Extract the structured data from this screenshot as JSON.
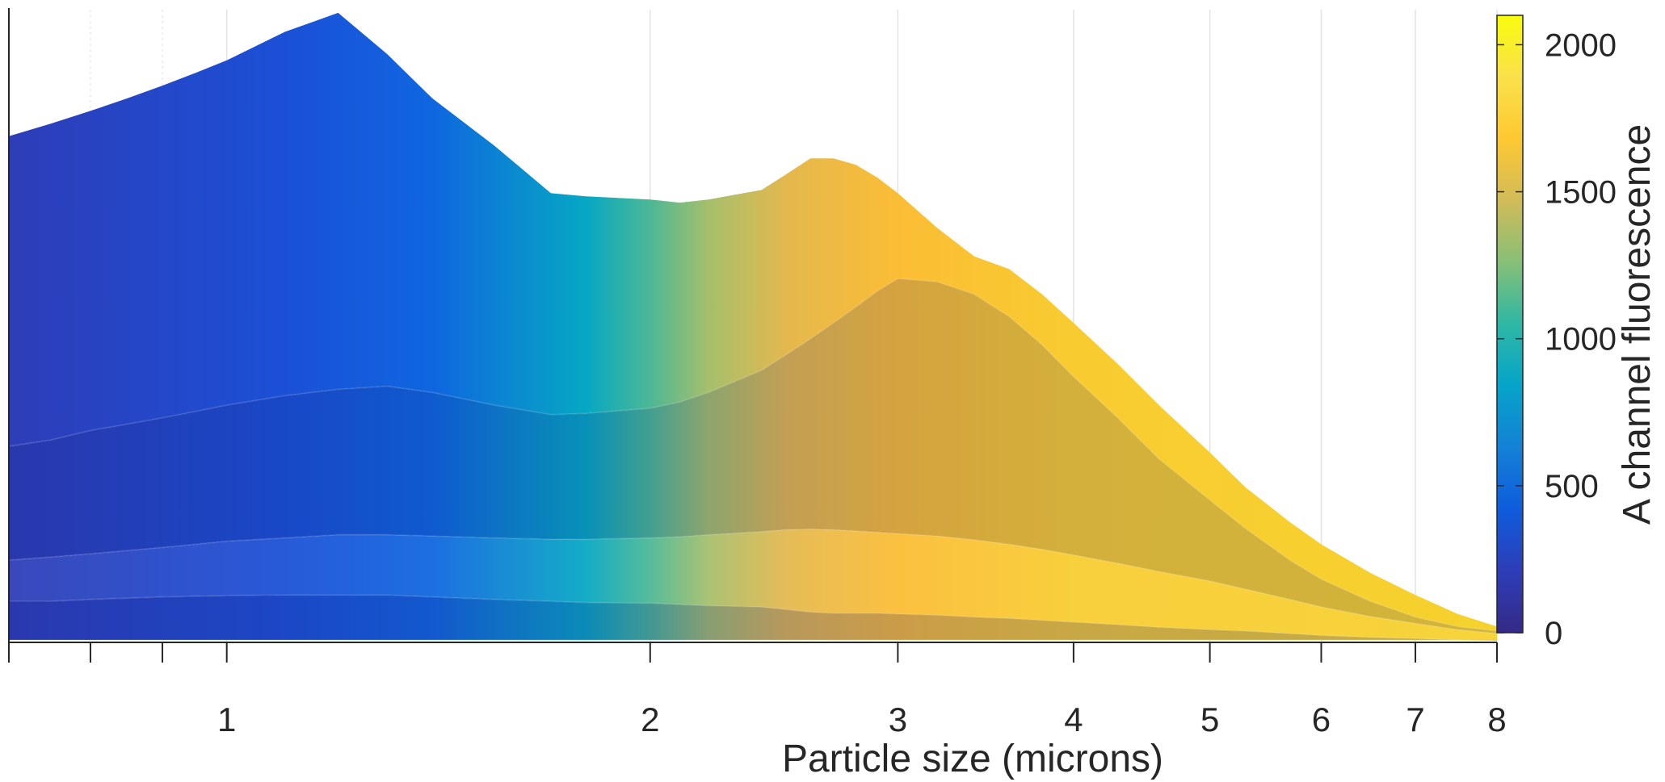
{
  "chart_data": {
    "type": "area",
    "xlabel": "Particle size (microns)",
    "x_scale": "log",
    "xlim": [
      0.7,
      8
    ],
    "x_ticks": [
      1,
      2,
      3,
      4,
      5,
      6,
      7,
      8
    ],
    "x_tick_labels": [
      "1",
      "2",
      "3",
      "4",
      "5",
      "6",
      "7",
      "8"
    ],
    "x_minor_ticks": [
      0.8,
      0.9
    ],
    "grid": "x",
    "ylim": [
      0,
      100
    ],
    "y_tick_labels_visible": false,
    "colorbar": {
      "label": "A channel fluorescence",
      "range": [
        0,
        2100
      ],
      "ticks": [
        0,
        500,
        1000,
        1500,
        2000
      ],
      "tick_labels": [
        "0",
        "500",
        "1000",
        "1500",
        "2000"
      ],
      "colormap": "parula",
      "position": "right"
    },
    "x": [
      0.7,
      0.75,
      0.8,
      0.85,
      0.9,
      0.95,
      1.0,
      1.1,
      1.2,
      1.3,
      1.4,
      1.55,
      1.7,
      1.8,
      2.0,
      2.1,
      2.2,
      2.4,
      2.5,
      2.6,
      2.7,
      2.8,
      2.9,
      3.0,
      3.2,
      3.4,
      3.6,
      3.8,
      4.0,
      4.3,
      4.6,
      5.0,
      5.3,
      5.7,
      6.0,
      6.5,
      7.0,
      7.5,
      8.0
    ],
    "series": [
      {
        "values": [
          6.5,
          6.5,
          6.8,
          7.0,
          7.2,
          7.3,
          7.4,
          7.5,
          7.5,
          7.5,
          7.2,
          6.8,
          6.5,
          6.3,
          6.2,
          6.0,
          5.8,
          5.6,
          5.2,
          4.8,
          4.6,
          4.6,
          4.6,
          4.5,
          4.3,
          4.0,
          3.8,
          3.5,
          3.2,
          2.8,
          2.4,
          2.0,
          1.8,
          1.4,
          1.1,
          0.8,
          0.6,
          0.4,
          0.3
        ]
      },
      {
        "values": [
          13,
          13.5,
          14,
          14.5,
          15,
          15.5,
          16,
          16.5,
          17,
          17,
          16.8,
          16.5,
          16.3,
          16.3,
          16.5,
          16.7,
          17,
          17.5,
          17.8,
          17.9,
          17.8,
          17.6,
          17.4,
          17.2,
          16.8,
          16.2,
          15.5,
          14.7,
          13.8,
          12.5,
          11.2,
          9.7,
          8.4,
          6.8,
          5.6,
          4.1,
          3.0,
          2.0,
          1.4
        ]
      },
      {
        "values": [
          31,
          32,
          33.5,
          34.5,
          35.5,
          36.5,
          37.5,
          39,
          40,
          40.5,
          39.5,
          37.5,
          36,
          36.2,
          37,
          38,
          39.5,
          43,
          45.5,
          48,
          50.5,
          53,
          55.5,
          57.5,
          57,
          55,
          51.5,
          47,
          42,
          35.5,
          29,
          22.5,
          18,
          13,
          10,
          6.5,
          4,
          2.5,
          1.8
        ]
      },
      {
        "values": [
          80,
          82,
          84,
          86,
          88,
          90,
          92,
          96.5,
          99.5,
          93,
          86,
          78.5,
          71,
          70.5,
          70,
          69.5,
          70,
          71.5,
          74,
          76.5,
          76.5,
          75.5,
          73.5,
          71,
          65.5,
          61,
          59,
          55,
          50.5,
          44,
          37.5,
          30,
          24.5,
          19,
          15.5,
          11,
          7.5,
          4.5,
          2.5
        ]
      }
    ]
  }
}
